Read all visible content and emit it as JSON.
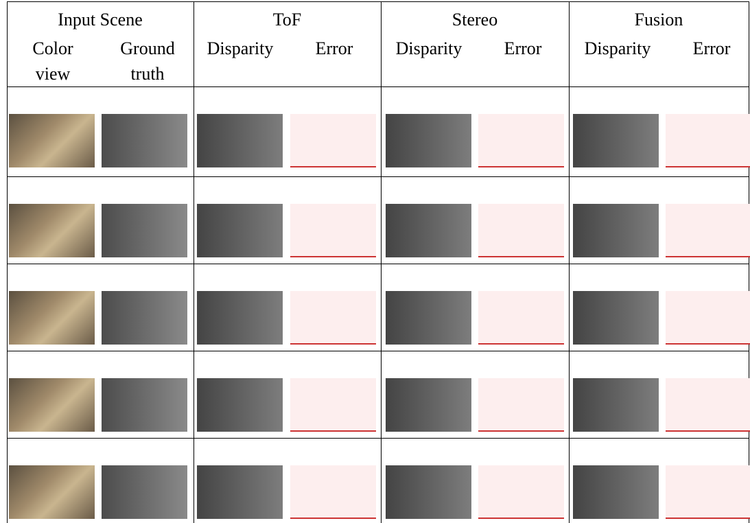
{
  "header": {
    "groups": [
      "Input Scene",
      "ToF",
      "Stereo",
      "Fusion"
    ],
    "columns": [
      "Color view",
      "Ground truth",
      "Disparity",
      "Error",
      "Disparity",
      "Error",
      "Disparity",
      "Error"
    ]
  }
}
